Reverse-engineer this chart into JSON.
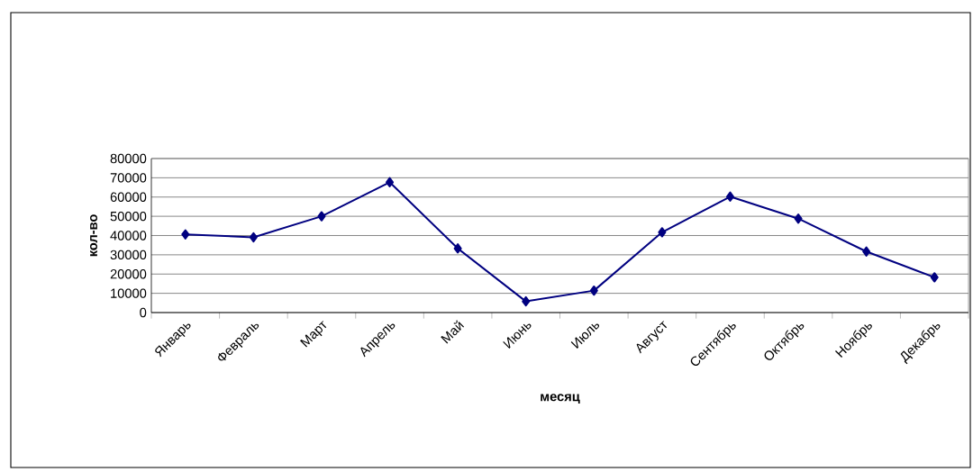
{
  "chart_data": {
    "type": "line",
    "xlabel": "месяц",
    "ylabel": "кол-во",
    "categories": [
      "Январь",
      "Февраль",
      "Март",
      "Апрель",
      "Май",
      "Июнь",
      "Июль",
      "Август",
      "Сентябрь",
      "Октябрь",
      "Ноябрь",
      "Декабрь"
    ],
    "series": [
      {
        "color": "#000080",
        "values": [
          40600,
          39100,
          50000,
          67700,
          33300,
          5800,
          11400,
          41700,
          60200,
          48800,
          31700,
          18300
        ]
      }
    ],
    "ylim": [
      0,
      80000
    ],
    "yticks": [
      0,
      10000,
      20000,
      30000,
      40000,
      50000,
      60000,
      70000,
      80000
    ],
    "grid": "y",
    "marker": "diamond",
    "line_style": "solid"
  }
}
